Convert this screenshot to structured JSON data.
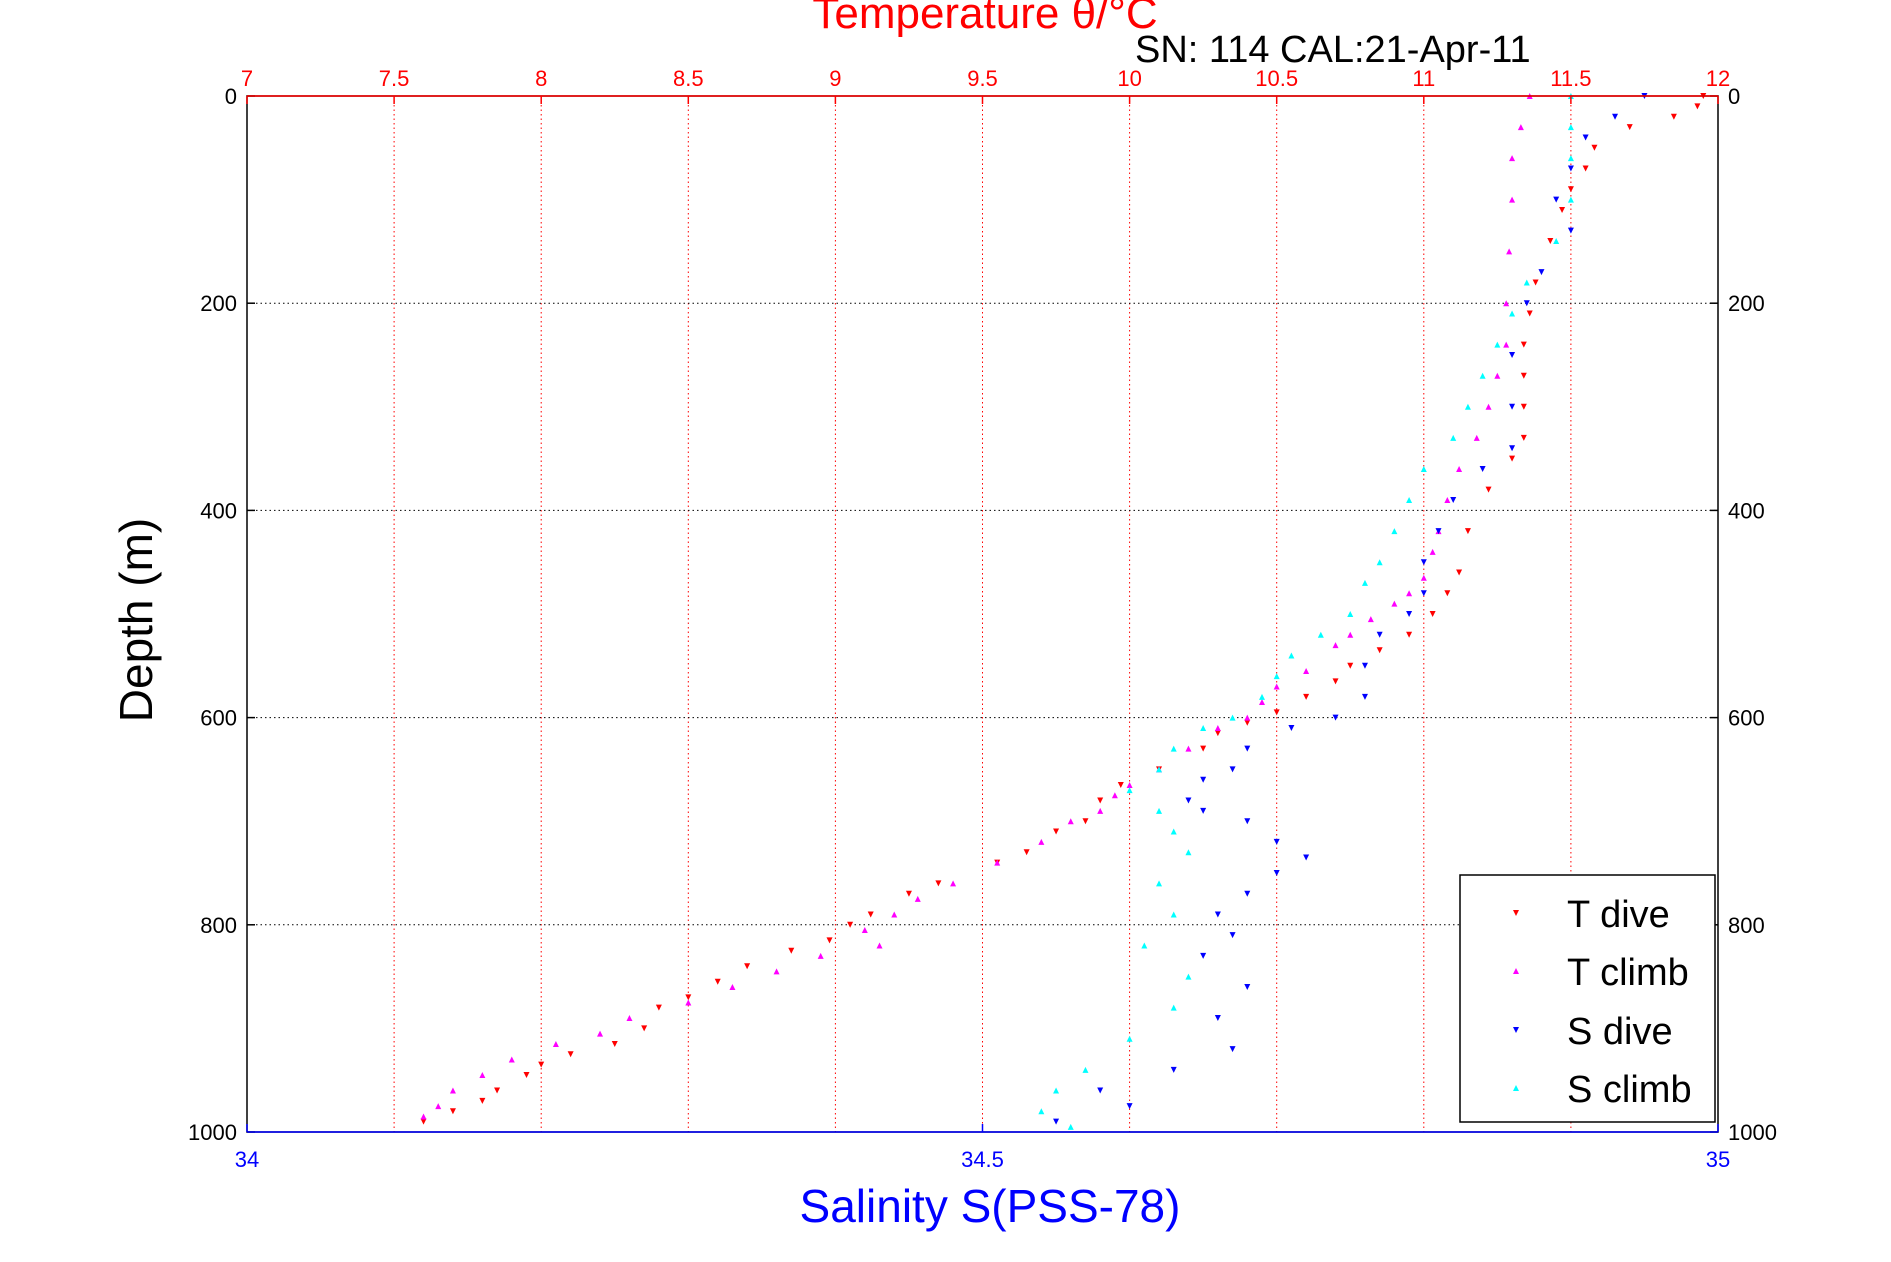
{
  "chart_data": {
    "type": "scatter",
    "title": "Temperature θ/°C",
    "subtitle": "SN: 114  CAL:21-Apr-11",
    "xlabel_bottom": "Salinity S(PSS-78)",
    "ylabel": "Depth (m)",
    "x_top_range": [
      7,
      12
    ],
    "x_bottom_range": [
      34,
      35
    ],
    "y_range": [
      0,
      1000
    ],
    "y_reversed": true,
    "x_top_ticks": [
      "7",
      "7.5",
      "8",
      "8.5",
      "9",
      "9.5",
      "10",
      "10.5",
      "11",
      "11.5",
      "12"
    ],
    "x_bottom_ticks": [
      "34",
      "34.5",
      "35"
    ],
    "y_ticks": [
      "0",
      "200",
      "400",
      "600",
      "800",
      "1000"
    ],
    "grid": true,
    "legend_position": "bottom-right",
    "colors": {
      "temperature_axis": "#ff0000",
      "salinity_axis": "#0000ff",
      "t_dive": "#ff0000",
      "t_climb": "#ff00ff",
      "s_dive": "#0000ff",
      "s_climb": "#00ffff"
    },
    "series": [
      {
        "name": "T dive",
        "axis": "temperature",
        "marker": "triangle-down",
        "points": [
          [
            11.95,
            0
          ],
          [
            11.93,
            10
          ],
          [
            11.85,
            20
          ],
          [
            11.7,
            30
          ],
          [
            11.58,
            50
          ],
          [
            11.55,
            70
          ],
          [
            11.5,
            90
          ],
          [
            11.47,
            110
          ],
          [
            11.43,
            140
          ],
          [
            11.38,
            180
          ],
          [
            11.36,
            210
          ],
          [
            11.34,
            240
          ],
          [
            11.34,
            270
          ],
          [
            11.34,
            300
          ],
          [
            11.34,
            330
          ],
          [
            11.3,
            350
          ],
          [
            11.22,
            380
          ],
          [
            11.15,
            420
          ],
          [
            11.12,
            460
          ],
          [
            11.08,
            480
          ],
          [
            11.03,
            500
          ],
          [
            10.95,
            520
          ],
          [
            10.85,
            535
          ],
          [
            10.75,
            550
          ],
          [
            10.7,
            565
          ],
          [
            10.6,
            580
          ],
          [
            10.5,
            595
          ],
          [
            10.4,
            605
          ],
          [
            10.3,
            615
          ],
          [
            10.25,
            630
          ],
          [
            10.1,
            650
          ],
          [
            9.97,
            665
          ],
          [
            9.9,
            680
          ],
          [
            9.85,
            700
          ],
          [
            9.75,
            710
          ],
          [
            9.65,
            730
          ],
          [
            9.55,
            740
          ],
          [
            9.35,
            760
          ],
          [
            9.25,
            770
          ],
          [
            9.12,
            790
          ],
          [
            9.05,
            800
          ],
          [
            8.98,
            815
          ],
          [
            8.85,
            825
          ],
          [
            8.7,
            840
          ],
          [
            8.6,
            855
          ],
          [
            8.5,
            870
          ],
          [
            8.4,
            880
          ],
          [
            8.35,
            900
          ],
          [
            8.25,
            915
          ],
          [
            8.1,
            925
          ],
          [
            8.0,
            935
          ],
          [
            7.95,
            945
          ],
          [
            7.85,
            960
          ],
          [
            7.8,
            970
          ],
          [
            7.7,
            980
          ],
          [
            7.6,
            990
          ]
        ]
      },
      {
        "name": "T climb",
        "axis": "temperature",
        "marker": "triangle-up",
        "points": [
          [
            11.36,
            0
          ],
          [
            11.33,
            30
          ],
          [
            11.3,
            60
          ],
          [
            11.3,
            100
          ],
          [
            11.29,
            150
          ],
          [
            11.28,
            200
          ],
          [
            11.28,
            240
          ],
          [
            11.25,
            270
          ],
          [
            11.22,
            300
          ],
          [
            11.18,
            330
          ],
          [
            11.12,
            360
          ],
          [
            11.08,
            390
          ],
          [
            11.05,
            420
          ],
          [
            11.03,
            440
          ],
          [
            11.0,
            465
          ],
          [
            10.95,
            480
          ],
          [
            10.9,
            490
          ],
          [
            10.82,
            505
          ],
          [
            10.75,
            520
          ],
          [
            10.7,
            530
          ],
          [
            10.6,
            555
          ],
          [
            10.5,
            570
          ],
          [
            10.45,
            585
          ],
          [
            10.4,
            600
          ],
          [
            10.3,
            610
          ],
          [
            10.2,
            630
          ],
          [
            10.1,
            650
          ],
          [
            10.0,
            665
          ],
          [
            9.95,
            675
          ],
          [
            9.9,
            690
          ],
          [
            9.8,
            700
          ],
          [
            9.7,
            720
          ],
          [
            9.55,
            740
          ],
          [
            9.4,
            760
          ],
          [
            9.28,
            775
          ],
          [
            9.2,
            790
          ],
          [
            9.1,
            805
          ],
          [
            9.15,
            820
          ],
          [
            8.95,
            830
          ],
          [
            8.8,
            845
          ],
          [
            8.65,
            860
          ],
          [
            8.5,
            875
          ],
          [
            8.3,
            890
          ],
          [
            8.2,
            905
          ],
          [
            8.05,
            915
          ],
          [
            7.9,
            930
          ],
          [
            7.8,
            945
          ],
          [
            7.7,
            960
          ],
          [
            7.65,
            975
          ],
          [
            7.6,
            985
          ]
        ]
      },
      {
        "name": "S dive",
        "axis": "salinity",
        "marker": "triangle-down",
        "points": [
          [
            34.95,
            0
          ],
          [
            34.93,
            20
          ],
          [
            34.91,
            40
          ],
          [
            34.9,
            70
          ],
          [
            34.89,
            100
          ],
          [
            34.9,
            130
          ],
          [
            34.88,
            170
          ],
          [
            34.87,
            200
          ],
          [
            34.86,
            250
          ],
          [
            34.86,
            300
          ],
          [
            34.86,
            340
          ],
          [
            34.84,
            360
          ],
          [
            34.82,
            390
          ],
          [
            34.81,
            420
          ],
          [
            34.8,
            450
          ],
          [
            34.8,
            480
          ],
          [
            34.79,
            500
          ],
          [
            34.77,
            520
          ],
          [
            34.76,
            550
          ],
          [
            34.76,
            580
          ],
          [
            34.74,
            600
          ],
          [
            34.71,
            610
          ],
          [
            34.68,
            630
          ],
          [
            34.67,
            650
          ],
          [
            34.65,
            660
          ],
          [
            34.64,
            680
          ],
          [
            34.65,
            690
          ],
          [
            34.68,
            700
          ],
          [
            34.7,
            720
          ],
          [
            34.72,
            735
          ],
          [
            34.7,
            750
          ],
          [
            34.68,
            770
          ],
          [
            34.66,
            790
          ],
          [
            34.67,
            810
          ],
          [
            34.65,
            830
          ],
          [
            34.68,
            860
          ],
          [
            34.66,
            890
          ],
          [
            34.67,
            920
          ],
          [
            34.63,
            940
          ],
          [
            34.58,
            960
          ],
          [
            34.6,
            975
          ],
          [
            34.55,
            990
          ]
        ]
      },
      {
        "name": "S climb",
        "axis": "salinity",
        "marker": "triangle-up",
        "points": [
          [
            34.9,
            0
          ],
          [
            34.9,
            30
          ],
          [
            34.9,
            60
          ],
          [
            34.9,
            100
          ],
          [
            34.89,
            140
          ],
          [
            34.87,
            180
          ],
          [
            34.86,
            210
          ],
          [
            34.85,
            240
          ],
          [
            34.84,
            270
          ],
          [
            34.83,
            300
          ],
          [
            34.82,
            330
          ],
          [
            34.8,
            360
          ],
          [
            34.79,
            390
          ],
          [
            34.78,
            420
          ],
          [
            34.77,
            450
          ],
          [
            34.76,
            470
          ],
          [
            34.75,
            500
          ],
          [
            34.73,
            520
          ],
          [
            34.71,
            540
          ],
          [
            34.7,
            560
          ],
          [
            34.69,
            580
          ],
          [
            34.67,
            600
          ],
          [
            34.65,
            610
          ],
          [
            34.63,
            630
          ],
          [
            34.62,
            650
          ],
          [
            34.6,
            670
          ],
          [
            34.62,
            690
          ],
          [
            34.63,
            710
          ],
          [
            34.64,
            730
          ],
          [
            34.62,
            760
          ],
          [
            34.63,
            790
          ],
          [
            34.61,
            820
          ],
          [
            34.64,
            850
          ],
          [
            34.63,
            880
          ],
          [
            34.6,
            910
          ],
          [
            34.57,
            940
          ],
          [
            34.55,
            960
          ],
          [
            34.54,
            980
          ],
          [
            34.56,
            995
          ]
        ]
      }
    ]
  }
}
